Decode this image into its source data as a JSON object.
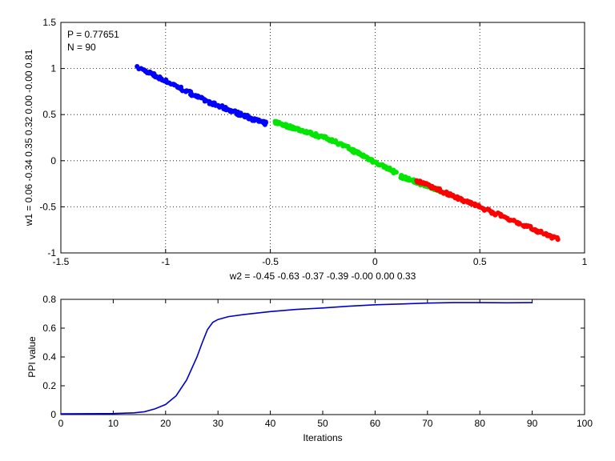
{
  "chart_data": [
    {
      "type": "scatter",
      "annotations": [
        "P = 0.77651",
        "N = 90"
      ],
      "xlabel": "w2 = -0.45  -0.63  -0.37  -0.39  -0.00  0.00  0.33",
      "ylabel": "w1 = 0.06  -0.34  0.35  0.32  0.00  -0.00  0.81",
      "xlim": [
        -1.5,
        1
      ],
      "ylim": [
        -1,
        1.5
      ],
      "xticks": [
        -1.5,
        -1,
        -0.5,
        0,
        0.5,
        1
      ],
      "yticks": [
        -1,
        -0.5,
        0,
        0.5,
        1,
        1.5
      ],
      "xtick_labels": [
        "-1.5",
        "-1",
        "-0.5",
        "0",
        "0.5",
        "1"
      ],
      "ytick_labels": [
        "-1",
        "-0.5",
        "0",
        "0.5",
        "1",
        "1.5"
      ],
      "grid": true,
      "series": [
        {
          "color": "#0000ff",
          "segments": [
            [
              -1.13,
              1.01,
              -0.78,
              0.62
            ],
            [
              -0.78,
              0.62,
              -0.52,
              0.4
            ]
          ]
        },
        {
          "color": "#00e600",
          "segments": [
            [
              -0.48,
              0.42,
              -0.2,
              0.22
            ],
            [
              -0.2,
              0.22,
              0.1,
              -0.13
            ],
            [
              0.12,
              -0.17,
              0.32,
              -0.33
            ]
          ]
        },
        {
          "color": "#ff0000",
          "segments": [
            [
              0.2,
              -0.22,
              0.5,
              -0.5
            ],
            [
              0.5,
              -0.5,
              0.87,
              -0.85
            ]
          ]
        }
      ]
    },
    {
      "type": "line",
      "xlabel": "Iterations",
      "ylabel": "PPI value",
      "xlim": [
        0,
        100
      ],
      "ylim": [
        0,
        0.8
      ],
      "xticks": [
        0,
        10,
        20,
        30,
        40,
        50,
        60,
        70,
        80,
        90,
        100
      ],
      "yticks": [
        0,
        0.2,
        0.4,
        0.6,
        0.8
      ],
      "xtick_labels": [
        "0",
        "10",
        "20",
        "30",
        "40",
        "50",
        "60",
        "70",
        "80",
        "90",
        "100"
      ],
      "ytick_labels": [
        "0",
        "0.2",
        "0.4",
        "0.6",
        "0.8"
      ],
      "grid": false,
      "series": [
        {
          "color": "#0000cc",
          "x": [
            0,
            10,
            14,
            16,
            18,
            20,
            22,
            24,
            26,
            27,
            28,
            29,
            30,
            32,
            35,
            40,
            45,
            50,
            55,
            60,
            65,
            70,
            75,
            80,
            85,
            90
          ],
          "y": [
            0.005,
            0.007,
            0.012,
            0.02,
            0.04,
            0.07,
            0.13,
            0.24,
            0.4,
            0.5,
            0.59,
            0.64,
            0.66,
            0.68,
            0.695,
            0.715,
            0.73,
            0.74,
            0.752,
            0.762,
            0.768,
            0.774,
            0.777,
            0.777,
            0.776,
            0.777
          ]
        }
      ]
    }
  ]
}
